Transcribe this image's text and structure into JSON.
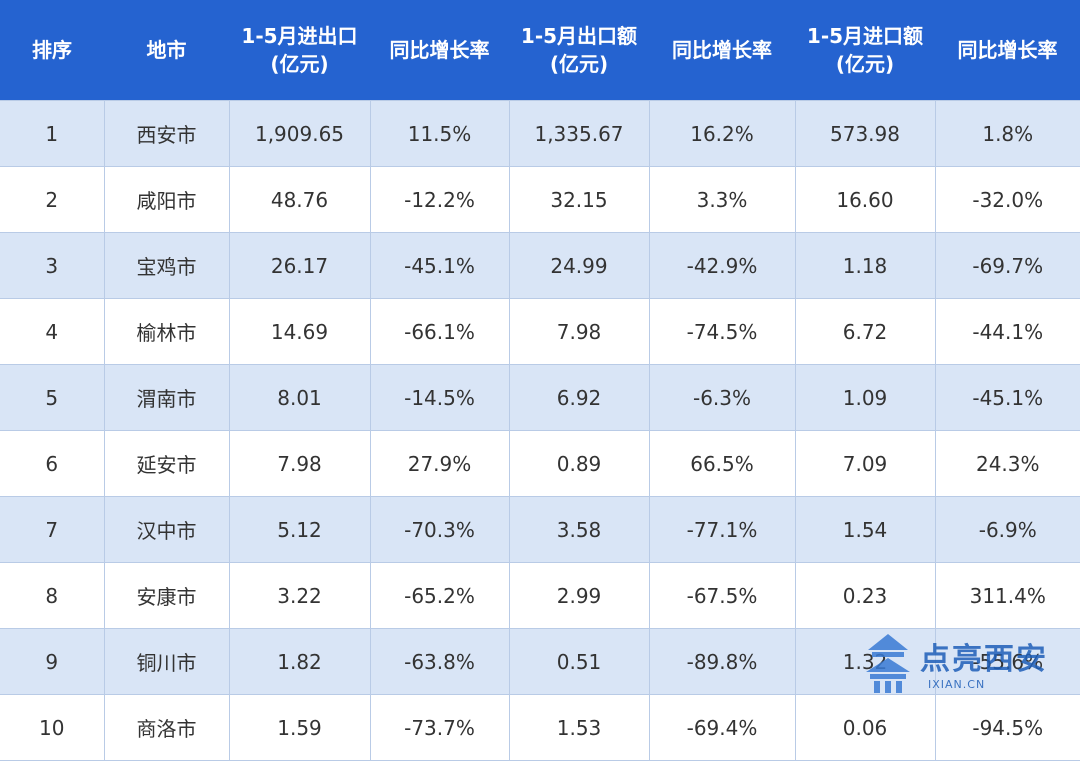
{
  "table": {
    "headers": [
      {
        "line1": "排序",
        "line2": ""
      },
      {
        "line1": "地市",
        "line2": ""
      },
      {
        "line1": "1-5月进出口",
        "line2": "(亿元)"
      },
      {
        "line1": "同比增长率",
        "line2": ""
      },
      {
        "line1": "1-5月出口额",
        "line2": "(亿元)"
      },
      {
        "line1": "同比增长率",
        "line2": ""
      },
      {
        "line1": "1-5月进口额",
        "line2": "(亿元)"
      },
      {
        "line1": "同比增长率",
        "line2": ""
      }
    ],
    "rows": [
      [
        "1",
        "西安市",
        "1,909.65",
        "11.5%",
        "1,335.67",
        "16.2%",
        "573.98",
        "1.8%"
      ],
      [
        "2",
        "咸阳市",
        "48.76",
        "-12.2%",
        "32.15",
        "3.3%",
        "16.60",
        "-32.0%"
      ],
      [
        "3",
        "宝鸡市",
        "26.17",
        "-45.1%",
        "24.99",
        "-42.9%",
        "1.18",
        "-69.7%"
      ],
      [
        "4",
        "榆林市",
        "14.69",
        "-66.1%",
        "7.98",
        "-74.5%",
        "6.72",
        "-44.1%"
      ],
      [
        "5",
        "渭南市",
        "8.01",
        "-14.5%",
        "6.92",
        "-6.3%",
        "1.09",
        "-45.1%"
      ],
      [
        "6",
        "延安市",
        "7.98",
        "27.9%",
        "0.89",
        "66.5%",
        "7.09",
        "24.3%"
      ],
      [
        "7",
        "汉中市",
        "5.12",
        "-70.3%",
        "3.58",
        "-77.1%",
        "1.54",
        "-6.9%"
      ],
      [
        "8",
        "安康市",
        "3.22",
        "-65.2%",
        "2.99",
        "-67.5%",
        "0.23",
        "311.4%"
      ],
      [
        "9",
        "铜川市",
        "1.82",
        "-63.8%",
        "0.51",
        "-89.8%",
        "1.32",
        "-55.6%"
      ],
      [
        "10",
        "商洛市",
        "1.59",
        "-73.7%",
        "1.53",
        "-69.4%",
        "0.06",
        "-94.5%"
      ]
    ]
  },
  "watermark": {
    "title": "点亮西安",
    "url": "IXIAN.CN",
    "icon": "building-logo-icon",
    "color": "#1f5fb8"
  },
  "colors": {
    "header_bg": "#2563d0",
    "row_alt_bg": "#d9e5f6",
    "border": "#b9cbe6"
  }
}
